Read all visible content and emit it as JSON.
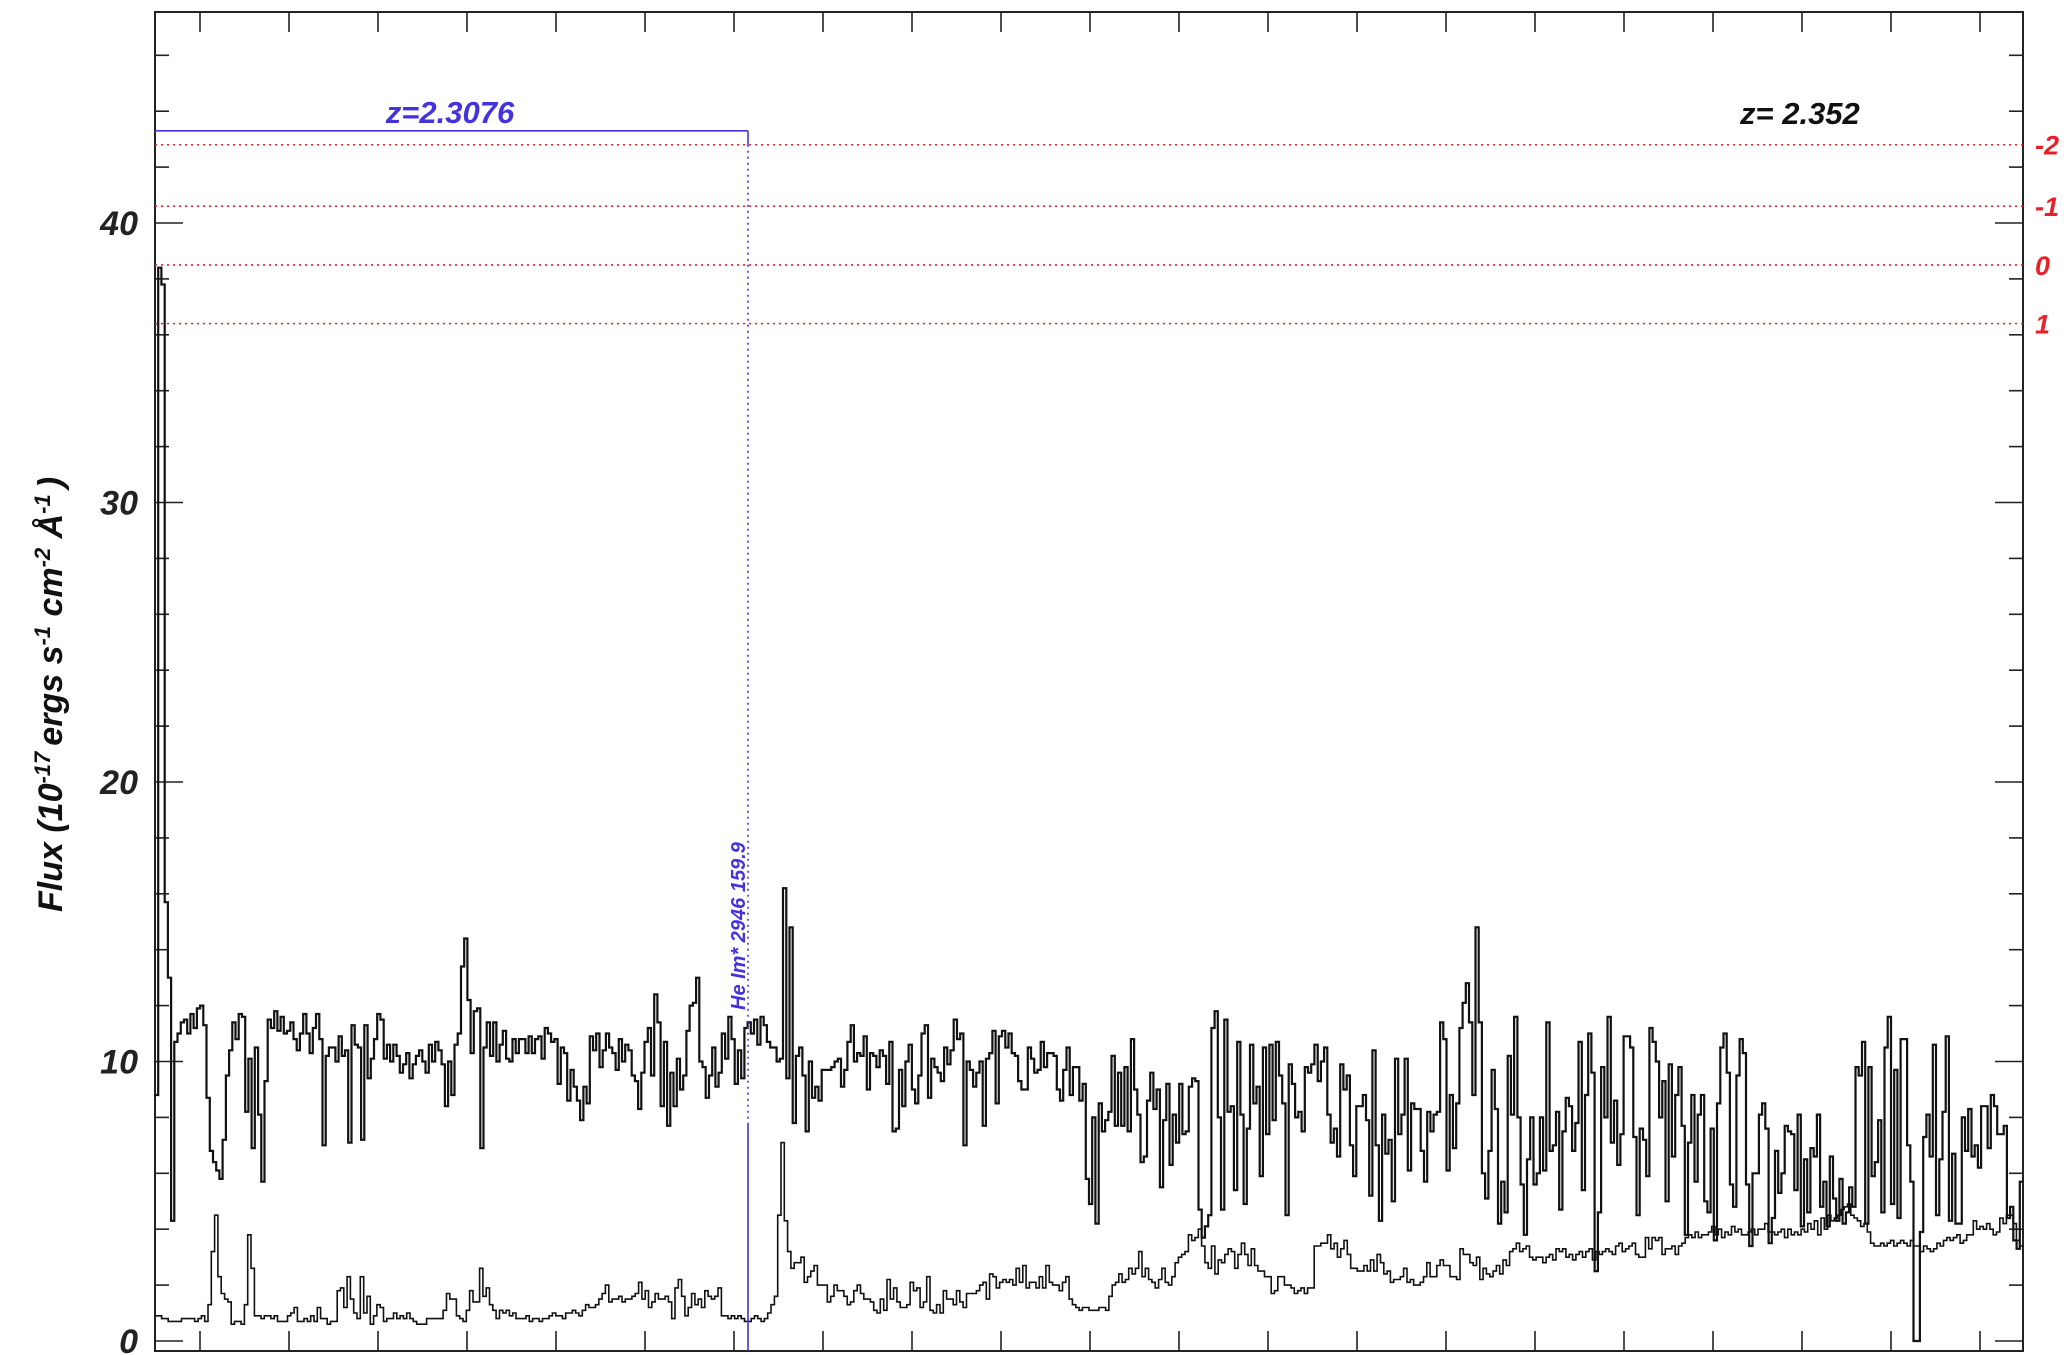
{
  "chart_data": {
    "type": "line",
    "ylabel": {
      "prefix": "Flux (10",
      "exp1": "-17",
      "mid1": "ergs s",
      "exp2": "-1",
      "mid2": " cm",
      "exp3": "-2",
      "mid3": " Å",
      "exp4": "-1",
      "suffix": ")"
    },
    "ylim": [
      0,
      48
    ],
    "yticks": [
      0,
      10,
      20,
      30,
      40
    ],
    "ytick_labels": [
      "0",
      "10",
      "20",
      "30",
      "40"
    ],
    "grid": false,
    "redshift_label": "z=  2.352",
    "system_label": "z=2.3076",
    "system_color": "#4433dd",
    "system_level": 43.3,
    "line_annotation": "He Im* 2946 159.9",
    "level_lines": [
      {
        "label": "-2",
        "y": 42.8
      },
      {
        "label": "-1",
        "y": 40.6
      },
      {
        "label": "0",
        "y": 38.5
      },
      {
        "label": "1",
        "y": 36.4
      }
    ],
    "level_color": "#e8202a",
    "series": [
      {
        "color": "#111111",
        "values": [
          8.8,
          38.4,
          37.8,
          15.7,
          13.0,
          4.3,
          10.7,
          11.0,
          11.4,
          11.5,
          11.0,
          11.7,
          11.2,
          11.9,
          12.0,
          11.3,
          8.7,
          6.8,
          6.4,
          6.1,
          5.8,
          7.2,
          9.5,
          10.4,
          11.4,
          10.8,
          11.7,
          11.6,
          8.2,
          10.1,
          6.9,
          10.5,
          8.1,
          5.7,
          9.3,
          11.5,
          11.2,
          11.8,
          11.1,
          11.6,
          11.0,
          11.1,
          11.4,
          10.8,
          10.4,
          11.0,
          11.7,
          11.0,
          10.3,
          11.2,
          11.7,
          10.8,
          7.0,
          10.2,
          10.5,
          10.5,
          10.0,
          10.9,
          10.2,
          10.4,
          7.1,
          11.3,
          10.6,
          10.5,
          7.2,
          11.3,
          9.4,
          10.1,
          10.8,
          11.7,
          11.5,
          10.1,
          10.6,
          10.0,
          10.6,
          10.2,
          9.6,
          9.9,
          10.3,
          9.4,
          9.9,
          10.2,
          10.4,
          10.0,
          9.6,
          10.6,
          10.0,
          10.7,
          10.4,
          9.9,
          8.4,
          10.0,
          8.8,
          10.6,
          11.0,
          13.4,
          14.4,
          12.2,
          10.3,
          11.8,
          11.9,
          6.9,
          10.5,
          11.4,
          10.2,
          11.4,
          10.0,
          10.6,
          11.1,
          10.1,
          10.0,
          10.8,
          10.3,
          10.8,
          10.8,
          10.3,
          10.9,
          10.3,
          10.8,
          10.9,
          10.1,
          11.2,
          11.0,
          10.7,
          10.8,
          9.2,
          10.5,
          10.3,
          8.6,
          9.7,
          9.1,
          8.6,
          7.9,
          9.1,
          8.5,
          10.9,
          10.4,
          11.0,
          9.8,
          10.4,
          11.0,
          10.5,
          10.3,
          9.7,
          10.8,
          10.0,
          10.6,
          10.4,
          9.5,
          9.3,
          8.3,
          9.6,
          10.7,
          11.2,
          9.5,
          12.4,
          11.4,
          8.4,
          10.7,
          7.7,
          9.6,
          8.4,
          10.1,
          9.0,
          9.5,
          11.1,
          12.0,
          12.1,
          13.0,
          10.0,
          9.8,
          8.7,
          9.5,
          10.5,
          9.1,
          9.6,
          11.0,
          10.1,
          11.6,
          10.8,
          9.2,
          10.4,
          9.4,
          11.2,
          11.4,
          11.0,
          11.5,
          10.6,
          11.6,
          11.3,
          10.7,
          10.5,
          10.5,
          10.0,
          10.1,
          16.2,
          9.4,
          14.8,
          7.8,
          10.2,
          10.5,
          9.5,
          7.5,
          10.0,
          8.7,
          9.1,
          8.6,
          9.7,
          9.7,
          9.7,
          9.8,
          10.0,
          10.1,
          9.1,
          9.7,
          10.7,
          11.3,
          10.0,
          10.3,
          10.2,
          10.9,
          9.0,
          10.3,
          10.2,
          9.8,
          10.4,
          10.2,
          9.2,
          10.7,
          7.5,
          7.6,
          9.7,
          8.4,
          10.0,
          10.6,
          9.0,
          8.5,
          9.5,
          11.0,
          11.3,
          8.7,
          10.1,
          9.8,
          9.6,
          9.3,
          10.5,
          9.9,
          10.4,
          11.5,
          10.8,
          11.0,
          7.0,
          10.0,
          9.7,
          9.1,
          9.6,
          10.0,
          7.7,
          10.1,
          10.3,
          11.1,
          8.5,
          10.9,
          11.1,
          10.5,
          11.0,
          10.3,
          10.2,
          9.3,
          9.0,
          9.0,
          10.5,
          10.1,
          9.6,
          9.7,
          10.7,
          9.8,
          10.3,
          10.3,
          10.2,
          9.0,
          8.6,
          9.7,
          10.5,
          8.8,
          9.8,
          9.8,
          8.6,
          9.2,
          5.8,
          4.9,
          8.0,
          4.2,
          8.5,
          7.5,
          7.9,
          8.2,
          10.2,
          7.7,
          9.6,
          7.7,
          9.8,
          7.5,
          10.8,
          9.0,
          8.1,
          6.4,
          6.6,
          8.6,
          9.6,
          8.3,
          9.0,
          5.5,
          7.9,
          9.2,
          6.3,
          8.1,
          7.1,
          9.2,
          7.4,
          7.5,
          9.1,
          9.4,
          9.3,
          4.7,
          3.7,
          4.1,
          4.5,
          11.2,
          11.8,
          8.0,
          4.7,
          11.5,
          8.2,
          8.4,
          5.4,
          10.7,
          8.1,
          4.9,
          7.6,
          10.6,
          8.5,
          9.1,
          5.9,
          10.5,
          7.4,
          10.6,
          7.9,
          10.7,
          9.5,
          8.5,
          4.5,
          9.9,
          9.2,
          8.0,
          8.2,
          7.5,
          9.8,
          9.6,
          9.9,
          10.6,
          9.3,
          10.0,
          10.5,
          8.1,
          7.1,
          7.6,
          6.6,
          9.9,
          9.0,
          9.5,
          7.0,
          5.9,
          8.4,
          8.4,
          8.8,
          7.9,
          5.2,
          10.4,
          7.0,
          4.3,
          8.1,
          6.7,
          7.2,
          5.0,
          10.1,
          7.4,
          8.1,
          10.1,
          6.1,
          8.5,
          8.3,
          8.3,
          6.8,
          5.7,
          8.2,
          7.5,
          8.1,
          8.2,
          11.4,
          10.8,
          6.1,
          8.8,
          6.9,
          8.5,
          11.2,
          12.1,
          12.8,
          11.4,
          8.8,
          14.8,
          11.4,
          6.0,
          5.1,
          6.8,
          9.7,
          8.3,
          4.2,
          5.7,
          4.6,
          10.2,
          8.1,
          11.6,
          8.0,
          5.6,
          3.8,
          6.5,
          8.0,
          5.6,
          6.0,
          8.0,
          6.1,
          11.4,
          6.8,
          7.0,
          8.2,
          4.7,
          7.5,
          8.7,
          8.4,
          6.8,
          7.8,
          10.7,
          5.4,
          8.8,
          11.0,
          9.6,
          2.5,
          4.6,
          9.8,
          8.0,
          11.6,
          7.1,
          8.6,
          6.3,
          7.4,
          10.9,
          10.9,
          10.5,
          7.3,
          4.5,
          7.6,
          7.2,
          5.9,
          11.2,
          10.7,
          10.0,
          8.0,
          9.3,
          5.0,
          9.9,
          6.6,
          8.8,
          9.8,
          7.7,
          3.8,
          7.1,
          8.8,
          5.7,
          8.1,
          8.8,
          5.0,
          4.6,
          7.6,
          3.6,
          8.5,
          10.5,
          11.0,
          9.6,
          5.6,
          4.8,
          9.5,
          10.8,
          10.3,
          5.6,
          3.4,
          6.0,
          6.0,
          8.1,
          8.5,
          7.6,
          3.5,
          4.4,
          6.8,
          5.3,
          6.0,
          7.7,
          7.5,
          7.4,
          5.4,
          8.1,
          4.1,
          6.5,
          4.6,
          6.9,
          6.6,
          8.1,
          4.8,
          5.7,
          4.1,
          6.6,
          5.1,
          4.3,
          5.8,
          4.2,
          4.6,
          5.5,
          4.8,
          9.8,
          9.5,
          10.7,
          4.2,
          9.8,
          5.9,
          6.4,
          7.9,
          4.6,
          10.5,
          11.6,
          4.9,
          9.7,
          4.4,
          10.8,
          10.8,
          7.0,
          5.7,
          0.0,
          0.0,
          3.9,
          7.3,
          8.1,
          6.6,
          10.6,
          4.5,
          6.5,
          8.2,
          10.9,
          4.3,
          6.7,
          4.2,
          4.2,
          8.0,
          6.8,
          8.3,
          6.6,
          7.0,
          6.2,
          8.4,
          8.4,
          6.9,
          8.8,
          8.4,
          7.4,
          7.4,
          7.7,
          4.4,
          4.8,
          3.6,
          3.3,
          5.7
        ]
      },
      {
        "color": "#111111",
        "values": [
          0.9,
          0.9,
          0.8,
          0.8,
          0.7,
          0.7,
          0.7,
          0.7,
          0.8,
          0.8,
          0.8,
          0.8,
          0.7,
          0.8,
          0.9,
          0.7,
          1.3,
          3.2,
          4.5,
          2.3,
          1.7,
          1.5,
          1.4,
          0.6,
          0.7,
          0.7,
          0.6,
          1.3,
          3.8,
          2.6,
          0.9,
          0.9,
          0.8,
          0.9,
          0.9,
          0.8,
          0.9,
          0.7,
          0.7,
          0.7,
          0.9,
          1.0,
          1.2,
          0.7,
          0.7,
          0.8,
          0.7,
          0.9,
          0.7,
          1.2,
          0.8,
          0.8,
          0.6,
          0.7,
          0.7,
          1.8,
          1.9,
          1.2,
          2.3,
          1.5,
          1.0,
          0.8,
          2.3,
          1.0,
          1.6,
          0.6,
          0.9,
          1.3,
          1.2,
          0.7,
          0.8,
          0.8,
          1.0,
          0.8,
          0.9,
          0.8,
          1.0,
          0.8,
          0.7,
          0.6,
          0.6,
          0.6,
          0.8,
          0.8,
          0.8,
          0.8,
          0.8,
          1.1,
          1.7,
          1.5,
          1.5,
          0.9,
          0.8,
          0.7,
          1.1,
          1.8,
          1.4,
          1.4,
          2.6,
          1.6,
          1.9,
          1.3,
          1.1,
          0.8,
          1.1,
          1.0,
          1.1,
          0.9,
          1.0,
          0.8,
          0.8,
          0.8,
          0.9,
          0.7,
          0.8,
          0.8,
          0.7,
          0.8,
          0.8,
          0.9,
          1.0,
          0.9,
          0.9,
          0.8,
          1.0,
          1.0,
          1.1,
          1.0,
          0.9,
          1.1,
          1.3,
          1.2,
          1.2,
          1.3,
          1.5,
          1.7,
          2.0,
          1.4,
          1.5,
          1.5,
          1.6,
          1.4,
          1.5,
          1.5,
          1.6,
          1.7,
          2.1,
          1.5,
          1.8,
          1.2,
          1.4,
          1.7,
          1.5,
          1.5,
          1.6,
          1.4,
          0.8,
          1.9,
          2.2,
          1.6,
          0.9,
          1.2,
          1.7,
          1.3,
          1.5,
          1.2,
          1.8,
          1.6,
          1.5,
          1.6,
          1.9,
          0.9,
          0.9,
          0.8,
          0.9,
          0.8,
          0.9,
          0.8,
          0.7,
          0.7,
          0.8,
          0.9,
          0.8,
          0.7,
          0.8,
          1.0,
          1.3,
          1.6,
          4.5,
          7.1,
          4.3,
          3.2,
          2.6,
          2.8,
          2.8,
          3.0,
          2.1,
          2.3,
          2.5,
          2.7,
          2.0,
          2.0,
          2.0,
          1.4,
          1.6,
          2.0,
          1.8,
          1.8,
          1.6,
          1.3,
          1.4,
          1.8,
          2.0,
          1.7,
          1.5,
          1.5,
          1.4,
          1.1,
          1.0,
          1.5,
          1.1,
          2.2,
          1.5,
          1.9,
          1.4,
          1.2,
          1.2,
          1.3,
          2.1,
          1.8,
          1.9,
          1.2,
          1.4,
          2.3,
          1.1,
          1.0,
          1.3,
          1.0,
          1.8,
          1.5,
          1.5,
          1.3,
          1.8,
          1.4,
          1.2,
          1.7,
          1.7,
          1.7,
          1.8,
          2.0,
          2.1,
          1.5,
          2.4,
          2.3,
          1.9,
          2.1,
          2.2,
          2.1,
          2.2,
          2.0,
          2.6,
          2.1,
          2.7,
          1.9,
          2.1,
          2.1,
          1.9,
          2.3,
          1.9,
          2.7,
          2.1,
          2.0,
          2.0,
          1.8,
          2.1,
          2.3,
          1.5,
          1.3,
          1.2,
          1.1,
          1.2,
          1.2,
          1.1,
          1.1,
          1.1,
          1.2,
          1.2,
          1.1,
          1.6,
          2.0,
          2.1,
          2.4,
          2.1,
          2.2,
          2.6,
          2.4,
          2.6,
          3.2,
          2.3,
          2.6,
          2.2,
          2.1,
          1.9,
          2.2,
          2.6,
          2.1,
          2.0,
          2.3,
          2.8,
          3.0,
          3.1,
          3.2,
          3.8,
          3.6,
          3.7,
          4.0,
          3.4,
          2.8,
          2.6,
          3.4,
          2.4,
          2.9,
          2.8,
          3.1,
          3.3,
          3.2,
          2.6,
          3.1,
          3.5,
          3.1,
          2.7,
          3.3,
          2.7,
          2.5,
          2.5,
          2.3,
          2.3,
          1.7,
          1.8,
          2.3,
          2.3,
          2.0,
          2.0,
          1.9,
          1.7,
          1.8,
          1.9,
          1.7,
          1.9,
          1.9,
          3.4,
          3.4,
          3.5,
          3.5,
          3.8,
          3.3,
          3.5,
          3.0,
          3.3,
          3.6,
          3.1,
          2.6,
          2.6,
          2.5,
          2.5,
          2.7,
          2.5,
          2.9,
          2.5,
          3.1,
          2.8,
          2.4,
          2.5,
          2.1,
          2.2,
          2.2,
          2.3,
          2.6,
          2.1,
          2.2,
          2.0,
          2.0,
          2.1,
          2.3,
          2.8,
          2.3,
          2.3,
          2.7,
          2.9,
          2.7,
          2.7,
          2.3,
          2.3,
          2.2,
          3.3,
          3.1,
          3.1,
          2.8,
          2.7,
          3.0,
          2.2,
          2.6,
          2.4,
          2.3,
          2.5,
          2.7,
          2.4,
          2.9,
          2.7,
          3.2,
          3.3,
          3.5,
          3.2,
          3.3,
          3.4,
          3.0,
          2.9,
          3.0,
          3.0,
          2.8,
          3.0,
          3.1,
          2.9,
          3.3,
          3.2,
          3.3,
          3.0,
          3.1,
          2.9,
          3.1,
          3.2,
          3.0,
          3.2,
          3.3,
          2.9,
          3.2,
          3.1,
          3.2,
          3.3,
          3.2,
          3.1,
          3.4,
          3.5,
          3.2,
          3.3,
          3.4,
          3.5,
          3.1,
          3.0,
          3.0,
          3.7,
          3.3,
          3.7,
          3.6,
          3.7,
          3.1,
          3.3,
          3.3,
          3.4,
          3.1,
          3.4,
          3.5,
          3.7,
          3.8,
          3.7,
          3.9,
          3.7,
          3.8,
          3.8,
          3.9,
          4.1,
          3.8,
          4.0,
          3.7,
          3.9,
          3.8,
          4.1,
          3.9,
          4.0,
          3.8,
          3.8,
          3.9,
          4.0,
          3.8,
          4.0,
          4.0,
          4.2,
          3.9,
          3.9,
          3.8,
          3.9,
          4.0,
          3.7,
          4.0,
          3.8,
          3.9,
          3.8,
          4.0,
          3.9,
          4.2,
          4.0,
          4.3,
          3.8,
          4.4,
          4.0,
          4.5,
          4.3,
          4.4,
          4.5,
          4.7,
          4.8,
          4.9,
          4.5,
          4.4,
          4.3,
          4.1,
          4.2,
          3.9,
          3.5,
          3.4,
          3.4,
          3.5,
          3.4,
          3.5,
          3.6,
          3.4,
          3.5,
          3.6,
          3.5,
          3.4,
          3.6,
          3.4,
          3.4,
          3.2,
          3.4,
          3.3,
          3.2,
          3.3,
          3.5,
          3.4,
          3.6,
          3.7,
          3.6,
          3.7,
          3.8,
          3.5,
          3.6,
          3.8,
          3.8,
          4.3,
          4.0,
          4.1,
          4.0,
          4.2,
          4.0,
          3.8,
          3.9,
          4.4,
          4.2,
          4.5,
          4.5,
          4.2,
          3.6,
          3.4
        ]
      }
    ]
  }
}
